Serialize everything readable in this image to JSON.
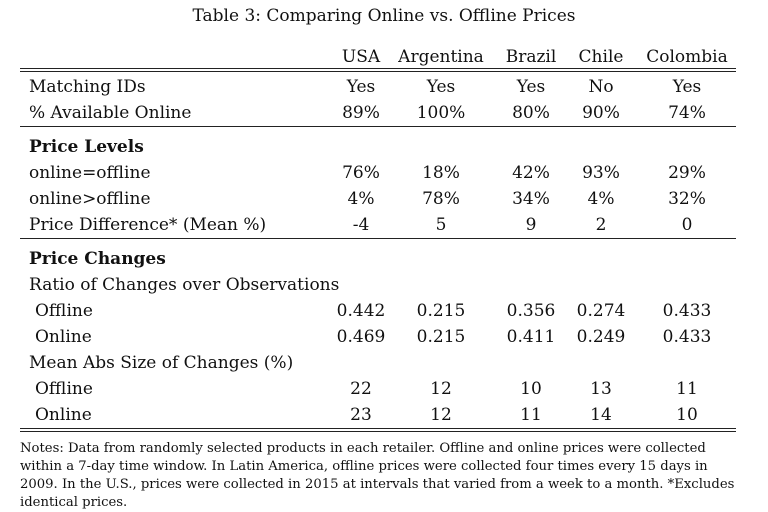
{
  "caption": "Table 3: Comparing Online vs. Offline Prices",
  "columns": [
    "USA",
    "Argentina",
    "Brazil",
    "Chile",
    "Colombia"
  ],
  "rows": [
    {
      "label": "Matching IDs",
      "values": [
        "Yes",
        "Yes",
        "Yes",
        "No",
        "Yes"
      ]
    },
    {
      "label": "% Available Online",
      "values": [
        "89%",
        "100%",
        "80%",
        "90%",
        "74%"
      ]
    },
    {
      "label": "Price Levels",
      "heading": true,
      "values": []
    },
    {
      "label": "online=offline",
      "values": [
        "76%",
        "18%",
        "42%",
        "93%",
        "29%"
      ]
    },
    {
      "label": "online>offline",
      "values": [
        "4%",
        "78%",
        "34%",
        "4%",
        "32%"
      ]
    },
    {
      "label": "Price Difference* (Mean %)",
      "values": [
        "-4",
        "5",
        "9",
        "2",
        "0"
      ]
    },
    {
      "label": "Price Changes",
      "heading": true,
      "values": []
    },
    {
      "label": "Ratio of Changes over Observations",
      "values": []
    },
    {
      "label": "Offline",
      "sub": true,
      "values": [
        "0.442",
        "0.215",
        "0.356",
        "0.274",
        "0.433"
      ]
    },
    {
      "label": "Online",
      "sub": true,
      "values": [
        "0.469",
        "0.215",
        "0.411",
        "0.249",
        "0.433"
      ]
    },
    {
      "label": "Mean Abs Size of Changes (%)",
      "values": []
    },
    {
      "label": "Offline",
      "sub": true,
      "values": [
        "22",
        "12",
        "10",
        "13",
        "11"
      ]
    },
    {
      "label": "Online",
      "sub": true,
      "values": [
        "23",
        "12",
        "11",
        "14",
        "10"
      ]
    }
  ],
  "notes": "Notes: Data from randomly selected products in each retailer. Offline and online prices were collected within a 7-day time window. In Latin America, offline prices were collected four times every 15 days in 2009. In the U.S., prices were collected in 2015 at intervals that varied from a week to a month. *Excludes identical prices."
}
